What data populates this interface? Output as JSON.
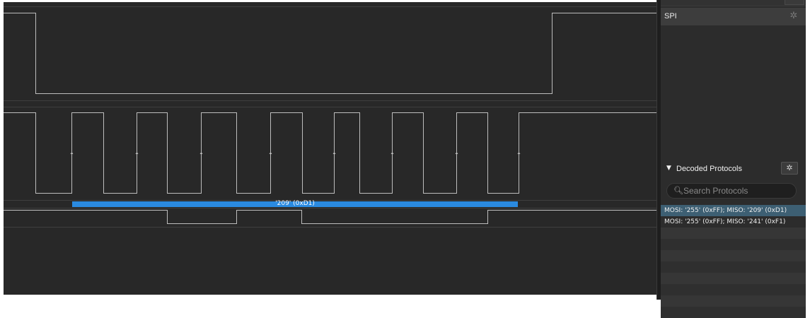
{
  "waveform": {
    "decoded_frame": {
      "label": "'209' (0xD1)",
      "color": "#2a8ae0"
    },
    "trace_color": "#bdbdbd",
    "background": "#282828"
  },
  "analyzers": {
    "items": [
      {
        "label": "SPI",
        "settings_icon": "gear-icon"
      }
    ]
  },
  "decoded_protocols": {
    "title": "Decoded Protocols",
    "collapse_icon": "triangle-down-icon",
    "settings_icon": "gear-icon",
    "search": {
      "placeholder": "Search Protocols",
      "value": "",
      "icon": "search-icon"
    },
    "results": [
      {
        "text": "MOSI: '255' (0xFF);  MISO: '209' (0xD1)",
        "selected": true
      },
      {
        "text": "MOSI: '255' (0xFF);  MISO: '241' (0xF1)",
        "selected": false
      }
    ],
    "selected_color": "#3d5f73"
  }
}
